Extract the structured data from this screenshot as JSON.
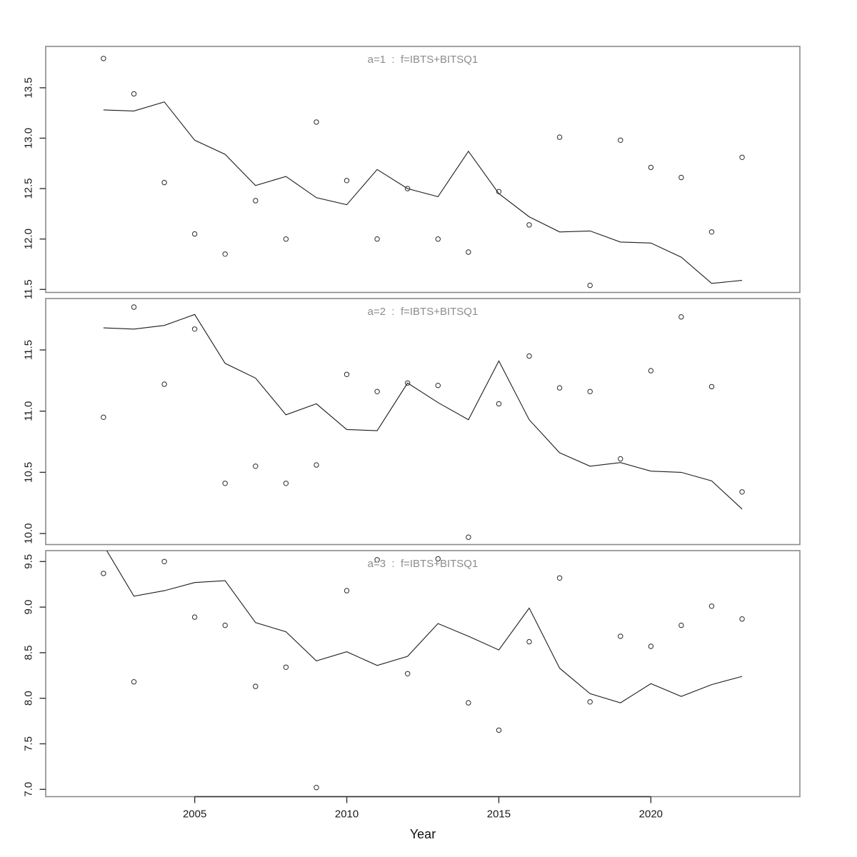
{
  "chart_data": {
    "type": "scatter-line-small-multiples",
    "xlabel": "Year",
    "x": [
      2002,
      2003,
      2004,
      2005,
      2006,
      2007,
      2008,
      2009,
      2010,
      2011,
      2012,
      2013,
      2014,
      2015,
      2016,
      2017,
      2018,
      2019,
      2020,
      2021,
      2022,
      2023
    ],
    "xlim": [
      2000.1,
      2024.9
    ],
    "xticks": [
      "2005",
      "2010",
      "2015",
      "2020"
    ],
    "grid": "off",
    "legend": "none",
    "colors": {
      "panel_border": "#8a8a8a",
      "axis_dark": "#333333",
      "tick_label": "#1a1a1a",
      "title": "#8c8c8c",
      "line": "#1c1c1c",
      "point": "#2a2a2a",
      "background": "#ffffff"
    },
    "panels": [
      {
        "title": "a=1  :  f=IBTS+BITSQ1",
        "ylim": [
          11.47,
          13.91
        ],
        "yticks": [
          "11.5",
          "12.0",
          "12.5",
          "13.0",
          "13.5"
        ],
        "series": [
          {
            "name": "observed",
            "type": "scatter",
            "values": [
              13.79,
              13.44,
              12.56,
              12.05,
              11.85,
              12.38,
              12.0,
              13.16,
              12.58,
              12.0,
              12.5,
              12.0,
              11.87,
              12.47,
              12.14,
              13.01,
              11.54,
              12.98,
              12.71,
              12.61,
              12.07,
              12.81
            ]
          },
          {
            "name": "fitted",
            "type": "line",
            "values": [
              13.28,
              13.27,
              13.36,
              12.98,
              12.84,
              12.53,
              12.62,
              12.41,
              12.34,
              12.69,
              12.5,
              12.42,
              12.87,
              12.45,
              12.22,
              12.07,
              12.08,
              11.97,
              11.96,
              11.82,
              11.56,
              11.59
            ]
          }
        ]
      },
      {
        "title": "a=2  :  f=IBTS+BITSQ1",
        "ylim": [
          9.91,
          11.92
        ],
        "yticks": [
          "10.0",
          "10.5",
          "11.0",
          "11.5"
        ],
        "series": [
          {
            "name": "observed",
            "type": "scatter",
            "values": [
              10.95,
              11.85,
              11.22,
              11.67,
              10.41,
              10.55,
              10.41,
              10.56,
              11.3,
              11.16,
              11.23,
              11.21,
              9.97,
              11.06,
              11.45,
              11.19,
              11.16,
              10.61,
              11.33,
              11.77,
              11.2,
              10.34
            ]
          },
          {
            "name": "fitted",
            "type": "line",
            "values": [
              11.68,
              11.67,
              11.7,
              11.79,
              11.39,
              11.27,
              10.97,
              11.06,
              10.85,
              10.84,
              11.23,
              11.07,
              10.93,
              11.41,
              10.93,
              10.66,
              10.55,
              10.58,
              10.51,
              10.5,
              10.43,
              10.2
            ]
          }
        ]
      },
      {
        "title": "a=3  :  f=IBTS+BITSQ1",
        "ylim": [
          6.92,
          9.62
        ],
        "yticks": [
          "7.0",
          "7.5",
          "8.0",
          "8.5",
          "9.0",
          "9.5"
        ],
        "series": [
          {
            "name": "observed",
            "type": "scatter",
            "values": [
              9.37,
              8.18,
              9.5,
              8.89,
              8.8,
              8.13,
              8.34,
              7.02,
              9.18,
              9.52,
              8.27,
              9.53,
              7.95,
              7.65,
              8.62,
              9.32,
              7.96,
              8.68,
              8.57,
              8.8,
              9.01,
              8.87
            ]
          },
          {
            "name": "fitted",
            "type": "line",
            "values": [
              9.68,
              9.12,
              9.18,
              9.27,
              9.29,
              8.83,
              8.73,
              8.41,
              8.51,
              8.36,
              8.46,
              8.82,
              8.68,
              8.53,
              8.99,
              8.33,
              8.05,
              7.95,
              8.16,
              8.02,
              8.15,
              8.24
            ]
          }
        ]
      }
    ]
  }
}
